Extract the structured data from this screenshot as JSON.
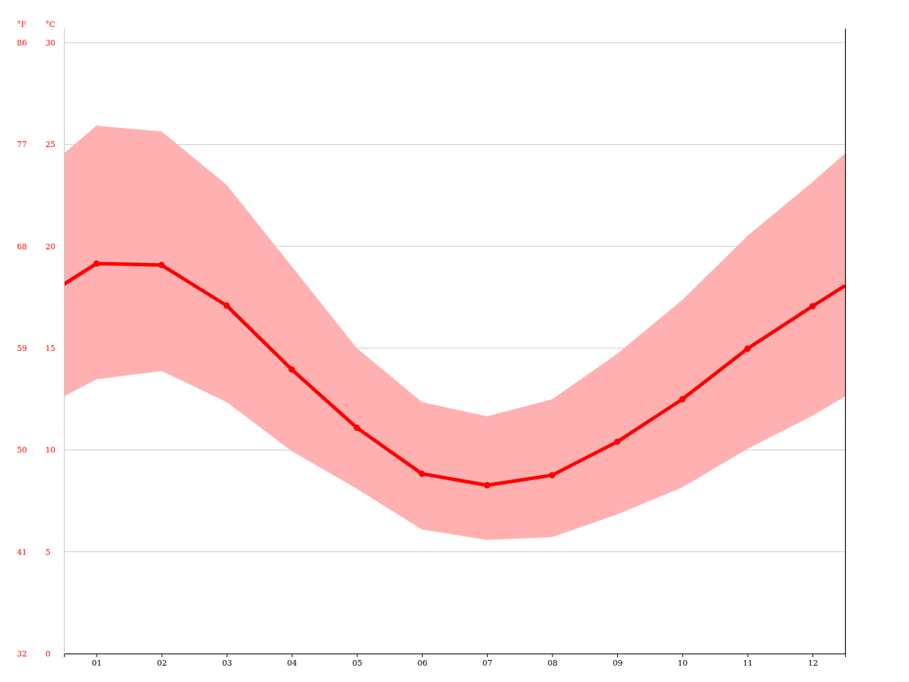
{
  "chart_data": {
    "type": "line",
    "x": [
      0.5,
      1,
      2,
      3,
      4,
      5,
      6,
      7,
      8,
      9,
      10,
      11,
      12,
      12.5
    ],
    "xlim": [
      0.5,
      12.5
    ],
    "xticks": [
      {
        "value": 1,
        "label": "01"
      },
      {
        "value": 2,
        "label": "02"
      },
      {
        "value": 3,
        "label": "03"
      },
      {
        "value": 4,
        "label": "04"
      },
      {
        "value": 5,
        "label": "05"
      },
      {
        "value": 6,
        "label": "06"
      },
      {
        "value": 7,
        "label": "07"
      },
      {
        "value": 8,
        "label": "08"
      },
      {
        "value": 9,
        "label": "09"
      },
      {
        "value": 10,
        "label": "10"
      },
      {
        "value": 11,
        "label": "11"
      },
      {
        "value": 12,
        "label": "12"
      }
    ],
    "y_label": "°C",
    "ylim": [
      0,
      30.7
    ],
    "yticks": [
      0,
      5,
      10,
      15,
      20,
      25,
      30
    ],
    "y2_label": "°F",
    "y2lim": [
      32,
      87.26
    ],
    "y2ticks": [
      32,
      41,
      50,
      59,
      68,
      77,
      86
    ],
    "grid": true,
    "series": [
      {
        "type": "band",
        "color": "#ffb1b1",
        "lower": [
          12.63,
          13.47,
          13.88,
          12.35,
          9.94,
          8.09,
          6.1,
          5.58,
          5.72,
          6.84,
          8.16,
          10.05,
          11.69,
          12.63
        ],
        "upper": [
          24.56,
          25.92,
          25.64,
          23.02,
          19.01,
          15.0,
          12.35,
          11.65,
          12.49,
          14.72,
          17.37,
          20.51,
          23.16,
          24.56
        ]
      },
      {
        "type": "line",
        "color": "#ff0000",
        "marker": "circle",
        "values": [
          18.14,
          19.15,
          19.08,
          17.09,
          13.95,
          11.09,
          8.83,
          8.27,
          8.76,
          10.4,
          12.49,
          14.97,
          17.06,
          18.07
        ]
      }
    ]
  }
}
